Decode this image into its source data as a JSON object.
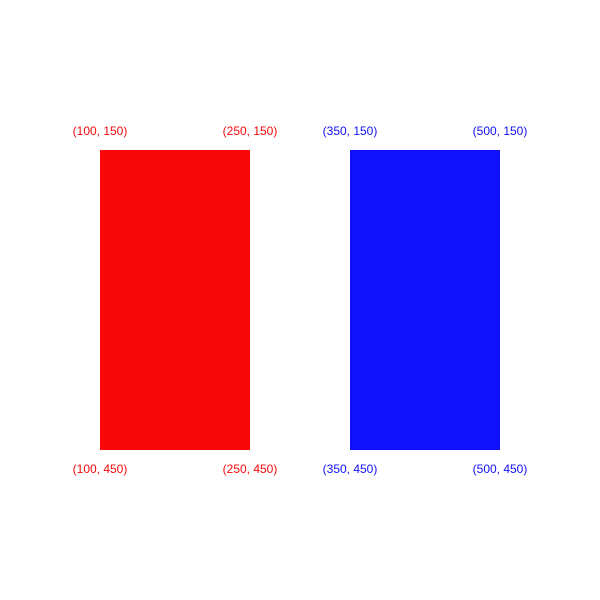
{
  "colors": {
    "red": "#f80808",
    "blue": "#1010fa"
  },
  "red_rectangle": {
    "labels": {
      "top_left": "(100, 150)",
      "top_right": "(250, 150)",
      "bottom_left": "(100, 450)",
      "bottom_right": "(250, 450)"
    }
  },
  "blue_rectangle": {
    "labels": {
      "top_left": "(350, 150)",
      "top_right": "(500, 150)",
      "bottom_left": "(350, 450)",
      "bottom_right": "(500, 450)"
    }
  }
}
